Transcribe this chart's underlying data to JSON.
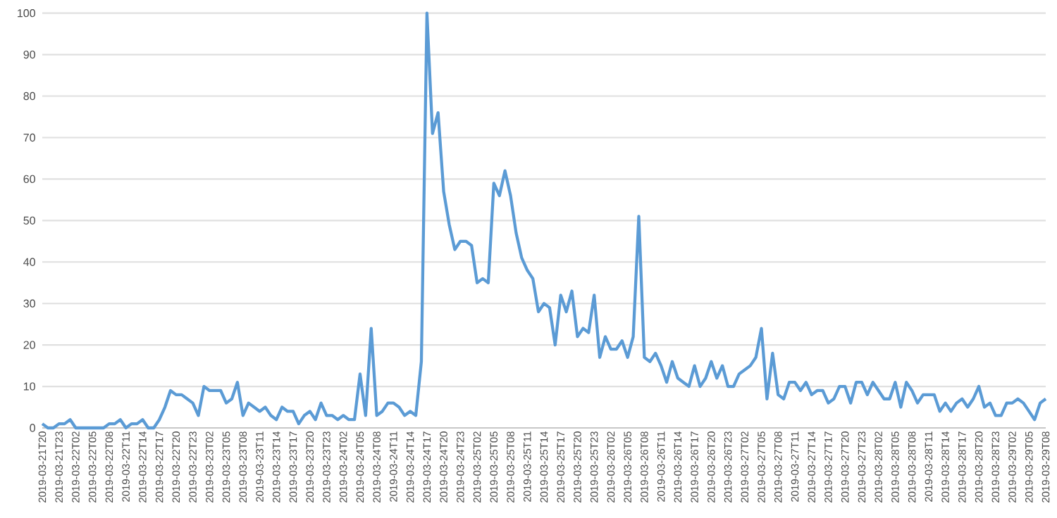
{
  "chart_data": {
    "type": "line",
    "categories": [
      "2019-03-21T20",
      null,
      null,
      "2019-03-21T23",
      null,
      null,
      "2019-03-22T02",
      null,
      null,
      "2019-03-22T05",
      null,
      null,
      "2019-03-22T08",
      null,
      null,
      "2019-03-22T11",
      null,
      null,
      "2019-03-22T14",
      null,
      null,
      "2019-03-22T17",
      null,
      null,
      "2019-03-22T20",
      null,
      null,
      "2019-03-22T23",
      null,
      null,
      "2019-03-23T02",
      null,
      null,
      "2019-03-23T05",
      null,
      null,
      "2019-03-23T08",
      null,
      null,
      "2019-03-23T11",
      null,
      null,
      "2019-03-23T14",
      null,
      null,
      "2019-03-23T17",
      null,
      null,
      "2019-03-23T20",
      null,
      null,
      "2019-03-23T23",
      null,
      null,
      "2019-03-24T02",
      null,
      null,
      "2019-03-24T05",
      null,
      null,
      "2019-03-24T08",
      null,
      null,
      "2019-03-24T11",
      null,
      null,
      "2019-03-24T14",
      null,
      null,
      "2019-03-24T17",
      null,
      null,
      "2019-03-24T20",
      null,
      null,
      "2019-03-24T23",
      null,
      null,
      "2019-03-25T02",
      null,
      null,
      "2019-03-25T05",
      null,
      null,
      "2019-03-25T08",
      null,
      null,
      "2019-03-25T11",
      null,
      null,
      "2019-03-25T14",
      null,
      null,
      "2019-03-25T17",
      null,
      null,
      "2019-03-25T20",
      null,
      null,
      "2019-03-25T23",
      null,
      null,
      "2019-03-26T02",
      null,
      null,
      "2019-03-26T05",
      null,
      null,
      "2019-03-26T08",
      null,
      null,
      "2019-03-26T11",
      null,
      null,
      "2019-03-26T14",
      null,
      null,
      "2019-03-26T17",
      null,
      null,
      "2019-03-26T20",
      null,
      null,
      "2019-03-26T23",
      null,
      null,
      "2019-03-27T02",
      null,
      null,
      "2019-03-27T05",
      null,
      null,
      "2019-03-27T08",
      null,
      null,
      "2019-03-27T11",
      null,
      null,
      "2019-03-27T14",
      null,
      null,
      "2019-03-27T17",
      null,
      null,
      "2019-03-27T20",
      null,
      null,
      "2019-03-27T23",
      null,
      null,
      "2019-03-28T02",
      null,
      null,
      "2019-03-28T05",
      null,
      null,
      "2019-03-28T08",
      null,
      null,
      "2019-03-28T11",
      null,
      null,
      "2019-03-28T14",
      null,
      null,
      "2019-03-28T17",
      null,
      null,
      "2019-03-28T20",
      null,
      null,
      "2019-03-28T23",
      null,
      null,
      "2019-03-29T02",
      null,
      null,
      "2019-03-29T05",
      null,
      null,
      "2019-03-29T08"
    ],
    "values": [
      1,
      0,
      0,
      1,
      1,
      2,
      0,
      0,
      0,
      0,
      0,
      0,
      1,
      1,
      2,
      0,
      1,
      1,
      2,
      0,
      0,
      2,
      5,
      9,
      8,
      8,
      7,
      6,
      3,
      10,
      9,
      9,
      9,
      6,
      7,
      11,
      3,
      6,
      5,
      4,
      5,
      3,
      2,
      5,
      4,
      4,
      1,
      3,
      4,
      2,
      6,
      3,
      3,
      2,
      3,
      2,
      2,
      13,
      3,
      24,
      3,
      4,
      6,
      6,
      5,
      3,
      4,
      3,
      16,
      100,
      71,
      76,
      57,
      49,
      43,
      45,
      45,
      44,
      35,
      36,
      35,
      59,
      56,
      62,
      56,
      47,
      41,
      38,
      36,
      28,
      30,
      29,
      20,
      32,
      28,
      33,
      22,
      24,
      23,
      32,
      17,
      22,
      19,
      19,
      21,
      17,
      22,
      51,
      17,
      16,
      18,
      15,
      11,
      16,
      12,
      11,
      10,
      15,
      10,
      12,
      16,
      12,
      15,
      10,
      10,
      13,
      14,
      15,
      17,
      24,
      7,
      18,
      8,
      7,
      11,
      11,
      9,
      11,
      8,
      9,
      9,
      6,
      7,
      10,
      10,
      6,
      11,
      11,
      8,
      11,
      9,
      7,
      7,
      11,
      5,
      11,
      9,
      6,
      8,
      8,
      8,
      4,
      6,
      4,
      6,
      7,
      5,
      7,
      10,
      5,
      6,
      3,
      3,
      6,
      6,
      7,
      6,
      4,
      2,
      6,
      7
    ],
    "color": "#5b9bd5",
    "ylim": [
      0,
      100
    ],
    "yticks": [
      0,
      10,
      20,
      30,
      40,
      50,
      60,
      70,
      80,
      90,
      100
    ],
    "grid": "y"
  }
}
